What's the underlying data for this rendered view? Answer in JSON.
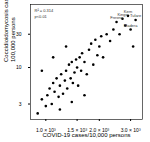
{
  "chart_data": {
    "type": "scatter",
    "x_label": "COVID-19 cases/10,000 persons",
    "y_label": "Coccidioidomycosis cases/\n100,000 persons",
    "annotations": [
      "R² = 0.314",
      "p<0.01"
    ],
    "log": true,
    "color": "#000000",
    "marker": "circle",
    "xlim": [
      820,
      3500
    ],
    "ylim": [
      1.8,
      80
    ],
    "xticks": [
      {
        "value": 1000,
        "label": "1.0 × 10³"
      },
      {
        "value": 1500,
        "label": "1.5 × 10³"
      },
      {
        "value": 2000,
        "label": "2.0 × 10³"
      },
      {
        "value": 3000,
        "label": "3.0 × 10³"
      }
    ],
    "yticks": [
      3,
      10,
      30
    ],
    "x": [
      900,
      950,
      1000,
      1020,
      1050,
      1080,
      1100,
      1120,
      1150,
      1180,
      1200,
      1220,
      1250,
      1280,
      1300,
      1320,
      1350,
      1380,
      1400,
      1420,
      1450,
      1480,
      1500,
      1520,
      1550,
      1580,
      1600,
      1650,
      1700,
      1750,
      1800,
      1850,
      1900,
      1950,
      2000,
      2050,
      2100,
      2200,
      2300,
      2400,
      2500,
      2600,
      2700,
      2800,
      2900,
      3000,
      3100,
      3200,
      1200,
      1400,
      1650,
      1100,
      1300,
      950
    ],
    "values": [
      2.2,
      3.5,
      2.8,
      4,
      5,
      3,
      6,
      4.5,
      7,
      3.8,
      5.5,
      8,
      4.2,
      6.5,
      9,
      5,
      11,
      7,
      12,
      6,
      8.5,
      13,
      10,
      5.5,
      14,
      9,
      16,
      12,
      8,
      18,
      22,
      11,
      25,
      15,
      20,
      28,
      14,
      30,
      24,
      35,
      45,
      30,
      50,
      40,
      55,
      35,
      20,
      48,
      2.5,
      3.2,
      4,
      14,
      20,
      9
    ],
    "point_labels": [
      null,
      null,
      null,
      null,
      null,
      null,
      null,
      null,
      null,
      null,
      null,
      null,
      null,
      null,
      null,
      null,
      null,
      null,
      null,
      null,
      null,
      null,
      null,
      null,
      null,
      null,
      null,
      null,
      null,
      null,
      null,
      null,
      null,
      null,
      null,
      null,
      null,
      null,
      null,
      null,
      "Fresno",
      null,
      "Kings",
      null,
      "Kern",
      "Madera",
      null,
      "Tulare",
      null,
      null,
      null,
      null,
      null,
      null
    ]
  }
}
